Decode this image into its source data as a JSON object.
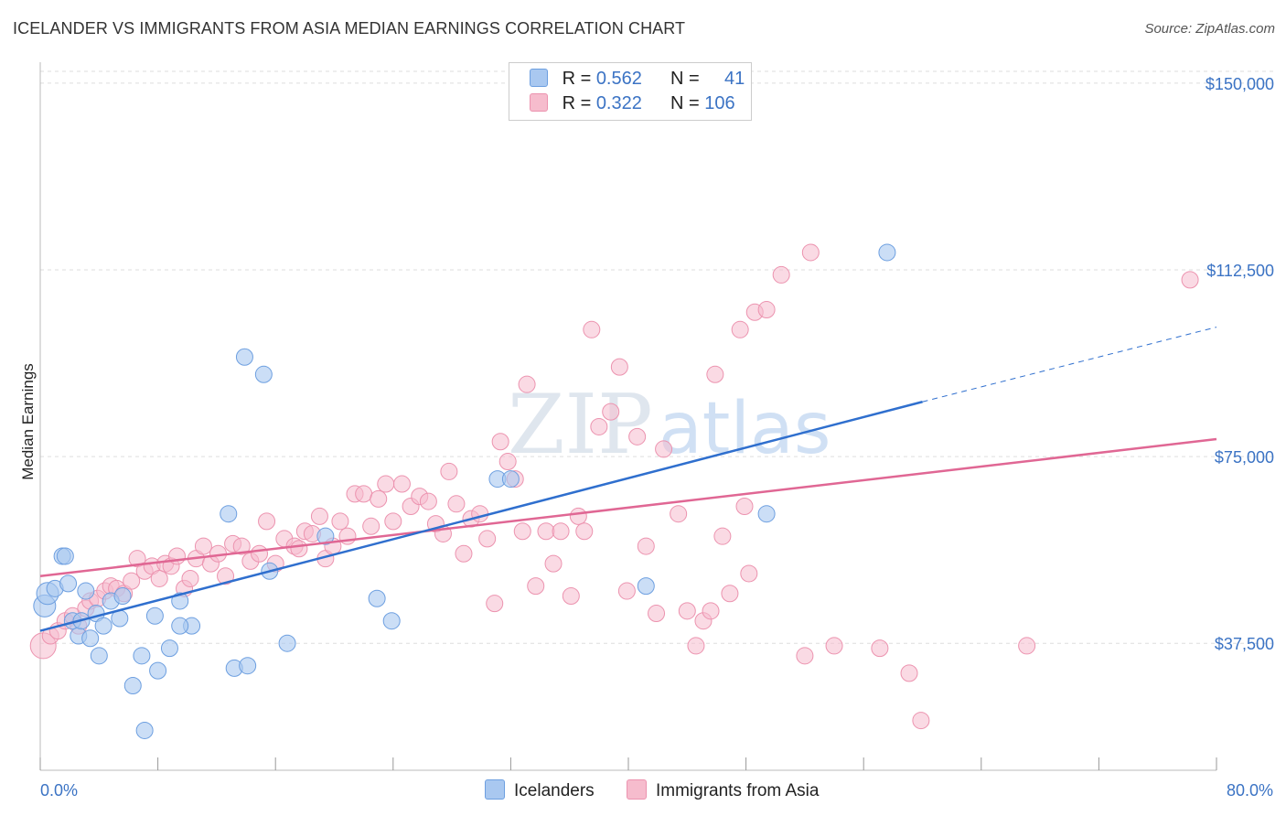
{
  "title": "ICELANDER VS IMMIGRANTS FROM ASIA MEDIAN EARNINGS CORRELATION CHART",
  "source": "Source: ZipAtlas.com",
  "watermark": {
    "zip": "ZIP",
    "atlas": "atlas"
  },
  "legend": {
    "series1": {
      "r_label": "R =",
      "r_value": "0.562",
      "n_label": "N =",
      "n_value": "41"
    },
    "series2": {
      "r_label": "R =",
      "r_value": "0.322",
      "n_label": "N =",
      "n_value": "106"
    }
  },
  "bottom_legend": {
    "series1": "Icelanders",
    "series2": "Immigrants from Asia"
  },
  "colors": {
    "series1_fill": "#a9c8f0",
    "series1_stroke": "#6d9fe0",
    "series1_line": "#2f6fce",
    "series2_fill": "#f6bccd",
    "series2_stroke": "#ec93af",
    "series2_line": "#e06794",
    "tick_label": "#3b73c4",
    "grid": "#dddddd"
  },
  "chart_data": {
    "type": "scatter",
    "title": "ICELANDER VS IMMIGRANTS FROM ASIA MEDIAN EARNINGS CORRELATION CHART",
    "xlabel": "",
    "ylabel": "Median Earnings",
    "xlim": [
      0,
      80
    ],
    "ylim": [
      12000,
      152000
    ],
    "x_tick_labels": [
      "0.0%",
      "80.0%"
    ],
    "y_ticks": [
      37500,
      75000,
      112500,
      150000
    ],
    "y_tick_labels": [
      "$37,500",
      "$75,000",
      "$112,500",
      "$150,000"
    ],
    "grid": true,
    "legend_position": "top-center",
    "series": [
      {
        "name": "Icelanders",
        "R": 0.562,
        "N": 41,
        "trend": {
          "x0": 0,
          "y0": 40000,
          "x1": 60,
          "y1": 86000,
          "dashed_to_x": 80,
          "dashed_to_y": 101000
        },
        "points": [
          [
            0.3,
            45000
          ],
          [
            0.5,
            47500
          ],
          [
            1.0,
            48500
          ],
          [
            1.5,
            55000
          ],
          [
            1.7,
            55000
          ],
          [
            1.9,
            49500
          ],
          [
            2.2,
            42000
          ],
          [
            2.6,
            39000
          ],
          [
            2.8,
            42000
          ],
          [
            3.1,
            48000
          ],
          [
            3.4,
            38500
          ],
          [
            3.8,
            43500
          ],
          [
            4.0,
            35000
          ],
          [
            4.3,
            41000
          ],
          [
            4.8,
            46000
          ],
          [
            5.4,
            42500
          ],
          [
            5.6,
            47000
          ],
          [
            6.3,
            29000
          ],
          [
            6.9,
            35000
          ],
          [
            7.8,
            43000
          ],
          [
            8.0,
            32000
          ],
          [
            8.8,
            36500
          ],
          [
            9.5,
            46000
          ],
          [
            10.3,
            41000
          ],
          [
            12.8,
            63500
          ],
          [
            13.2,
            32500
          ],
          [
            14.1,
            33000
          ],
          [
            13.9,
            95000
          ],
          [
            15.2,
            91500
          ],
          [
            15.6,
            52000
          ],
          [
            16.8,
            37500
          ],
          [
            19.4,
            59000
          ],
          [
            22.9,
            46500
          ],
          [
            23.9,
            42000
          ],
          [
            31.1,
            70500
          ],
          [
            32.0,
            70500
          ],
          [
            41.2,
            49000
          ],
          [
            49.4,
            63500
          ],
          [
            9.5,
            41000
          ],
          [
            57.6,
            116000
          ],
          [
            7.1,
            20000
          ]
        ]
      },
      {
        "name": "Immigrants from Asia",
        "R": 0.322,
        "N": 106,
        "trend": {
          "x0": 0,
          "y0": 51000,
          "x1": 80,
          "y1": 78500
        },
        "points": [
          [
            0.2,
            37000
          ],
          [
            0.7,
            39000
          ],
          [
            1.2,
            40000
          ],
          [
            1.7,
            42000
          ],
          [
            2.2,
            43000
          ],
          [
            2.6,
            41000
          ],
          [
            3.1,
            44500
          ],
          [
            3.4,
            46000
          ],
          [
            3.9,
            46500
          ],
          [
            4.4,
            48000
          ],
          [
            4.8,
            49000
          ],
          [
            5.2,
            48500
          ],
          [
            5.7,
            47500
          ],
          [
            6.2,
            50000
          ],
          [
            6.6,
            54500
          ],
          [
            7.1,
            52000
          ],
          [
            7.6,
            53000
          ],
          [
            8.1,
            50500
          ],
          [
            8.5,
            53500
          ],
          [
            8.9,
            53000
          ],
          [
            9.3,
            55000
          ],
          [
            9.8,
            48500
          ],
          [
            10.2,
            50500
          ],
          [
            10.6,
            54500
          ],
          [
            11.1,
            57000
          ],
          [
            11.6,
            53500
          ],
          [
            12.1,
            55500
          ],
          [
            12.6,
            51000
          ],
          [
            13.1,
            57500
          ],
          [
            13.7,
            57000
          ],
          [
            14.3,
            54000
          ],
          [
            14.9,
            55500
          ],
          [
            15.4,
            62000
          ],
          [
            16.0,
            53500
          ],
          [
            16.6,
            58500
          ],
          [
            17.3,
            57000
          ],
          [
            17.6,
            56500
          ],
          [
            18.0,
            60000
          ],
          [
            18.5,
            59500
          ],
          [
            19.0,
            63000
          ],
          [
            19.4,
            54500
          ],
          [
            19.9,
            57000
          ],
          [
            20.4,
            62000
          ],
          [
            20.9,
            59000
          ],
          [
            21.4,
            67500
          ],
          [
            22.0,
            67500
          ],
          [
            22.5,
            61000
          ],
          [
            23.0,
            66500
          ],
          [
            23.5,
            69500
          ],
          [
            24.0,
            62000
          ],
          [
            24.6,
            69500
          ],
          [
            25.2,
            65000
          ],
          [
            25.8,
            67000
          ],
          [
            26.4,
            66000
          ],
          [
            26.9,
            61500
          ],
          [
            27.4,
            59500
          ],
          [
            27.8,
            72000
          ],
          [
            28.3,
            65500
          ],
          [
            28.8,
            55500
          ],
          [
            29.3,
            62500
          ],
          [
            29.9,
            63500
          ],
          [
            30.4,
            58500
          ],
          [
            30.9,
            45500
          ],
          [
            31.3,
            78000
          ],
          [
            31.8,
            74000
          ],
          [
            32.3,
            70500
          ],
          [
            32.8,
            60000
          ],
          [
            33.1,
            89500
          ],
          [
            33.7,
            49000
          ],
          [
            34.4,
            60000
          ],
          [
            34.9,
            53500
          ],
          [
            35.4,
            60000
          ],
          [
            36.1,
            47000
          ],
          [
            36.6,
            63000
          ],
          [
            37.0,
            60000
          ],
          [
            37.5,
            100500
          ],
          [
            38.0,
            81000
          ],
          [
            38.8,
            84000
          ],
          [
            39.4,
            93000
          ],
          [
            39.9,
            48000
          ],
          [
            40.6,
            79000
          ],
          [
            41.2,
            57000
          ],
          [
            41.9,
            43500
          ],
          [
            42.4,
            76500
          ],
          [
            43.4,
            63500
          ],
          [
            44.0,
            44000
          ],
          [
            44.6,
            37000
          ],
          [
            45.1,
            42000
          ],
          [
            45.6,
            44000
          ],
          [
            45.9,
            91500
          ],
          [
            46.4,
            59000
          ],
          [
            46.9,
            47500
          ],
          [
            47.6,
            100500
          ],
          [
            47.9,
            65000
          ],
          [
            48.2,
            51500
          ],
          [
            48.6,
            104000
          ],
          [
            49.4,
            104500
          ],
          [
            50.4,
            111500
          ],
          [
            52.0,
            35000
          ],
          [
            52.4,
            116000
          ],
          [
            54.0,
            37000
          ],
          [
            57.1,
            36500
          ],
          [
            59.1,
            31500
          ],
          [
            59.9,
            22000
          ],
          [
            67.1,
            37000
          ],
          [
            78.2,
            110500
          ]
        ]
      }
    ]
  }
}
